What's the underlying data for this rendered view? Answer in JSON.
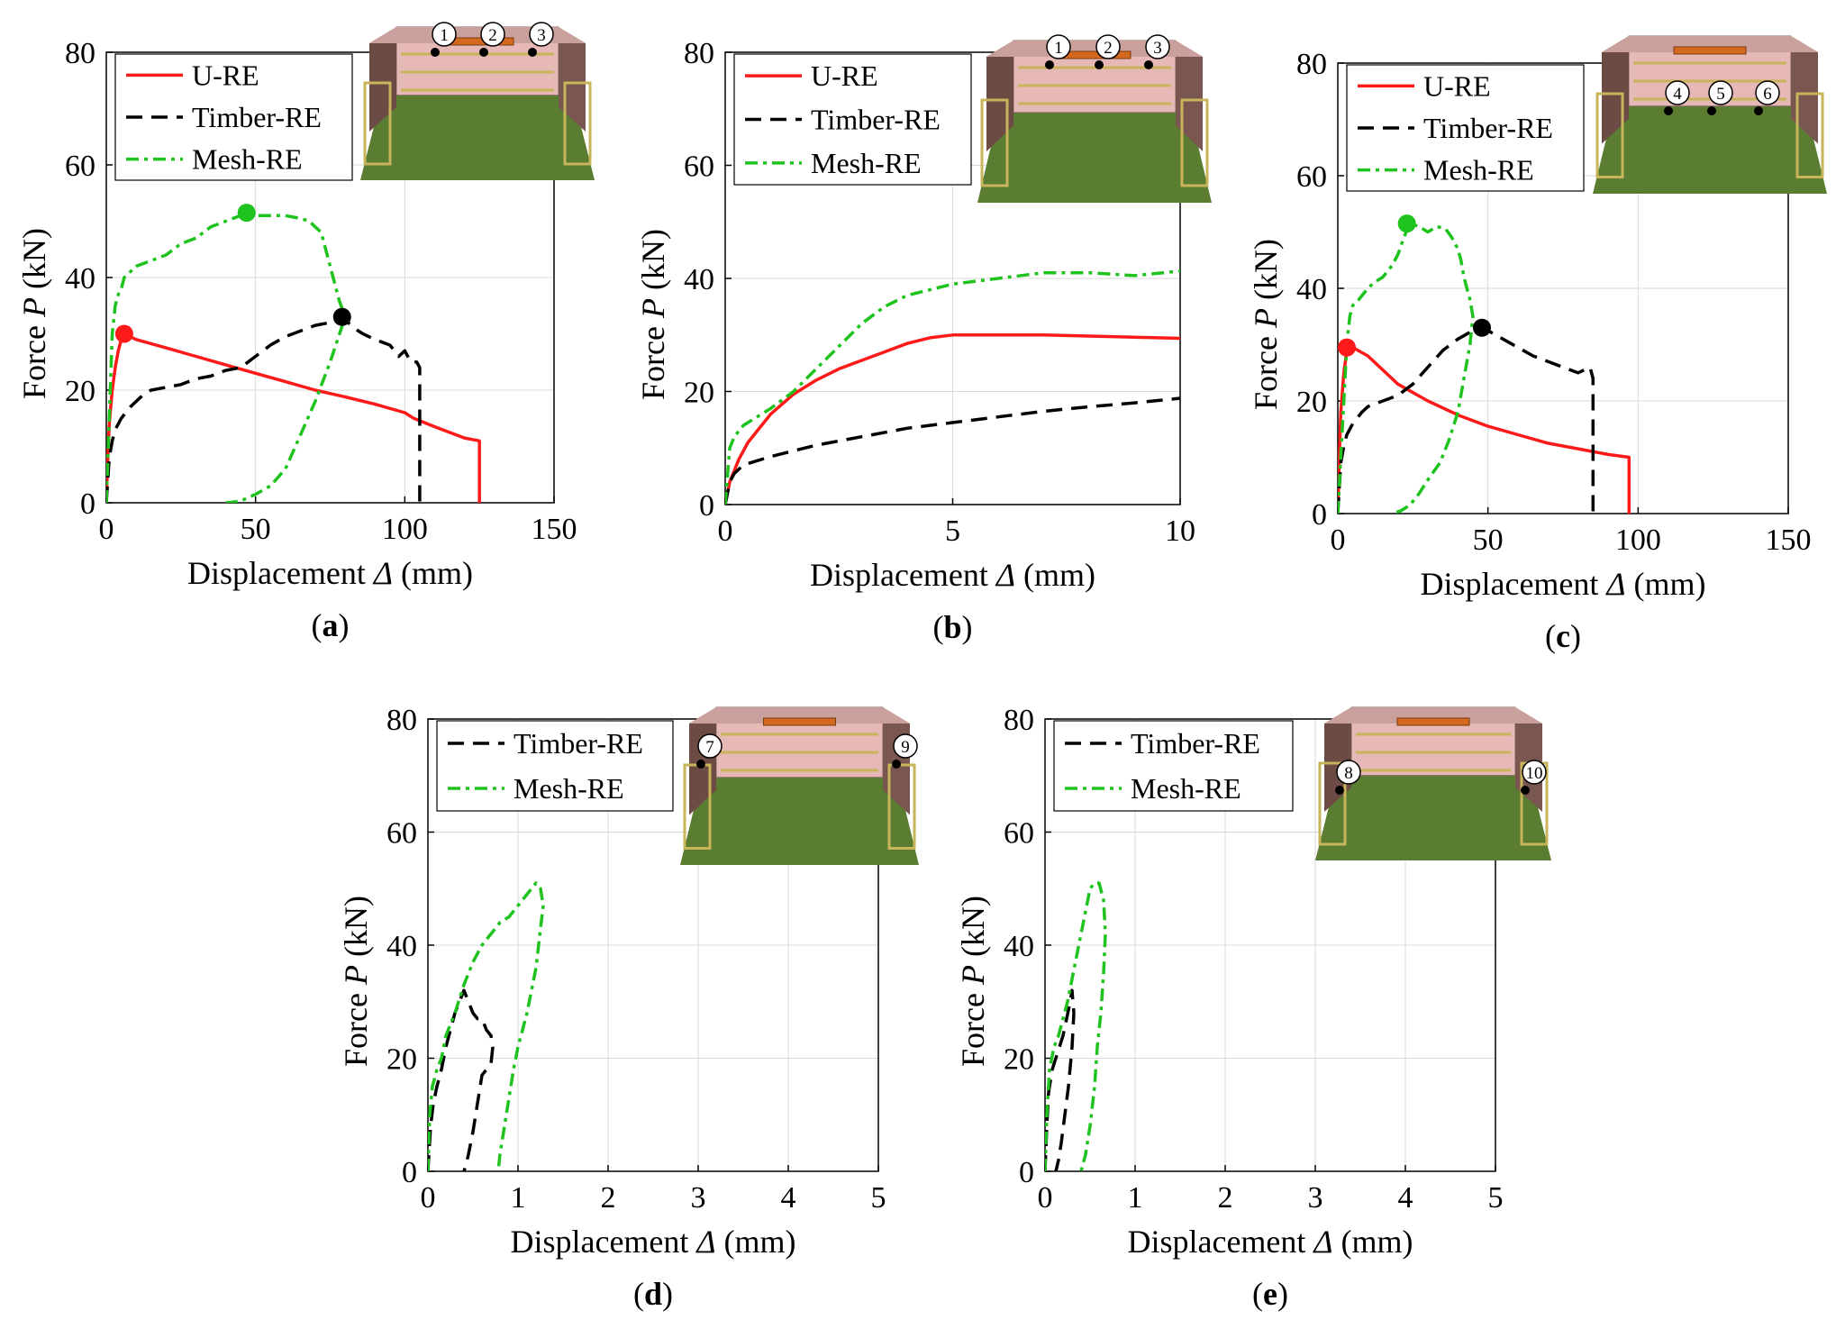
{
  "figure": {
    "colors": {
      "u_re": "#ff1a1a",
      "timber_re": "#000000",
      "mesh_re": "#1ec31e",
      "grid": "#d9d9d9",
      "wall": "#b78f8f",
      "ground": "#5a7d32"
    }
  },
  "chart_data": [
    {
      "id": "a",
      "type": "line",
      "caption_letter": "a",
      "xlabel_main": "Displacement ",
      "xlabel_sym": "Δ",
      "xlabel_unit": " (mm)",
      "ylabel_main": "Force ",
      "ylabel_sym": "P",
      "ylabel_unit": " (kN)",
      "xlim": [
        0,
        150
      ],
      "ylim": [
        0,
        80
      ],
      "xticks": [
        0,
        50,
        100,
        150
      ],
      "yticks": [
        0,
        20,
        40,
        60,
        80
      ],
      "legend_position": "top-left",
      "inset_labels": [
        "1",
        "2",
        "3"
      ],
      "series": [
        {
          "name": "U-RE",
          "style": "solid",
          "color": "#ff1a1a",
          "x": [
            0,
            0.5,
            1,
            2,
            3,
            4,
            5,
            6,
            10,
            20,
            30,
            40,
            50,
            60,
            70,
            80,
            90,
            100,
            103,
            110,
            115,
            120,
            125,
            125
          ],
          "y": [
            0,
            8,
            14,
            20,
            24,
            27,
            29,
            30,
            29,
            27.5,
            26,
            24.5,
            23,
            21.5,
            20,
            18.8,
            17.5,
            16,
            15,
            13.5,
            12.5,
            11.5,
            11,
            0
          ]
        },
        {
          "name": "Timber-RE",
          "style": "dash",
          "color": "#000000",
          "x": [
            0,
            1,
            2,
            3,
            5,
            8,
            10,
            12,
            15,
            20,
            25,
            30,
            35,
            40,
            45,
            50,
            55,
            60,
            65,
            70,
            75,
            78,
            80,
            83,
            86,
            90,
            95,
            98,
            100,
            102,
            104,
            105,
            105
          ],
          "y": [
            0,
            8,
            11,
            13,
            15,
            17,
            18,
            19,
            20,
            20.5,
            21,
            22,
            22.5,
            23.5,
            24,
            26,
            28,
            29.5,
            30.5,
            31.5,
            32,
            32.5,
            32.5,
            31,
            30,
            29,
            28,
            26,
            27,
            25,
            25,
            24,
            0
          ]
        },
        {
          "name": "Mesh-RE",
          "style": "dashdot",
          "color": "#1ec31e",
          "x": [
            0,
            1,
            2,
            3,
            4,
            5,
            6,
            8,
            10,
            15,
            20,
            25,
            30,
            35,
            40,
            45,
            50,
            55,
            60,
            65,
            68,
            70,
            72,
            73,
            74,
            75,
            76,
            77,
            78,
            80,
            75,
            70,
            65,
            60,
            55,
            50,
            47,
            45,
            42,
            40
          ],
          "y": [
            0,
            15,
            30,
            35,
            37,
            38,
            40,
            41,
            42,
            43,
            44,
            46,
            47,
            49,
            50,
            51,
            51,
            51,
            51,
            50.5,
            50,
            49,
            48,
            46,
            44,
            42,
            40,
            38,
            36,
            33,
            25,
            18,
            12,
            6,
            3,
            1.5,
            0.8,
            0.3,
            0.1,
            0
          ]
        }
      ],
      "peaks": [
        {
          "series": "U-RE",
          "x": 6,
          "y": 30
        },
        {
          "series": "Mesh-RE",
          "x": 47,
          "y": 51.5
        },
        {
          "series": "Timber-RE",
          "x": 79,
          "y": 33
        }
      ]
    },
    {
      "id": "b",
      "type": "line",
      "caption_letter": "b",
      "xlabel_main": "Displacement ",
      "xlabel_sym": "Δ",
      "xlabel_unit": " (mm)",
      "ylabel_main": "Force ",
      "ylabel_sym": "P",
      "ylabel_unit": " (kN)",
      "xlim": [
        0,
        10
      ],
      "ylim": [
        0,
        80
      ],
      "xticks": [
        0,
        5,
        10
      ],
      "yticks": [
        0,
        20,
        40,
        60,
        80
      ],
      "legend_position": "top-left",
      "inset_labels": [
        "1",
        "2",
        "3"
      ],
      "series": [
        {
          "name": "U-RE",
          "style": "solid",
          "color": "#ff1a1a",
          "x": [
            0,
            0.1,
            0.2,
            0.3,
            0.5,
            0.8,
            1,
            1.5,
            2,
            2.5,
            3,
            3.5,
            4,
            4.5,
            5,
            6,
            7,
            8,
            9,
            10
          ],
          "y": [
            0,
            4,
            6,
            8,
            11,
            14,
            16,
            19.5,
            22,
            24,
            25.5,
            27,
            28.5,
            29.5,
            30,
            30,
            30,
            29.8,
            29.6,
            29.4
          ]
        },
        {
          "name": "Timber-RE",
          "style": "dash",
          "color": "#000000",
          "x": [
            0,
            0.1,
            0.2,
            0.4,
            0.6,
            1,
            1.5,
            2,
            3,
            4,
            5,
            6,
            7,
            8,
            9,
            10
          ],
          "y": [
            0,
            4,
            5.5,
            7,
            7.5,
            8.5,
            9.5,
            10.5,
            12,
            13.5,
            14.5,
            15.5,
            16.5,
            17.3,
            18,
            18.8
          ]
        },
        {
          "name": "Mesh-RE",
          "style": "dashdot",
          "color": "#1ec31e",
          "x": [
            0,
            0.1,
            0.2,
            0.4,
            0.6,
            1,
            1.5,
            2,
            2.5,
            3,
            3.5,
            4,
            4.5,
            5,
            6,
            7,
            8,
            9,
            10
          ],
          "y": [
            0,
            10,
            12,
            14,
            15,
            17,
            20,
            24,
            28,
            32,
            35,
            37,
            38,
            39,
            40,
            41,
            41,
            40.5,
            41.3
          ]
        }
      ],
      "peaks": []
    },
    {
      "id": "c",
      "type": "line",
      "caption_letter": "c",
      "xlabel_main": "Displacement ",
      "xlabel_sym": "Δ",
      "xlabel_unit": " (mm)",
      "ylabel_main": "Force ",
      "ylabel_sym": "P",
      "ylabel_unit": " (kN)",
      "xlim": [
        0,
        150
      ],
      "ylim": [
        0,
        80
      ],
      "xticks": [
        0,
        50,
        100,
        150
      ],
      "yticks": [
        0,
        20,
        40,
        60,
        80
      ],
      "legend_position": "top-left",
      "inset_labels": [
        "4",
        "5",
        "6"
      ],
      "series": [
        {
          "name": "U-RE",
          "style": "solid",
          "color": "#ff1a1a",
          "x": [
            0,
            0.5,
            1,
            2,
            3,
            5,
            10,
            15,
            20,
            30,
            40,
            50,
            60,
            70,
            80,
            90,
            97,
            97
          ],
          "y": [
            0,
            10,
            18,
            25,
            29,
            29.5,
            28,
            25.5,
            23,
            20,
            17.5,
            15.5,
            14,
            12.5,
            11.5,
            10.5,
            10,
            0
          ]
        },
        {
          "name": "Timber-RE",
          "style": "dash",
          "color": "#000000",
          "x": [
            0,
            1,
            2,
            3,
            5,
            8,
            10,
            15,
            20,
            25,
            30,
            35,
            40,
            45,
            48,
            50,
            55,
            60,
            65,
            70,
            75,
            80,
            84,
            85,
            85
          ],
          "y": [
            0,
            9,
            12,
            14,
            16,
            18,
            19,
            20,
            21,
            23,
            26,
            29,
            31,
            32.5,
            33,
            32.5,
            31,
            29.5,
            28,
            27,
            26,
            25,
            26,
            24,
            0
          ]
        },
        {
          "name": "Mesh-RE",
          "style": "dashdot",
          "color": "#1ec31e",
          "x": [
            0,
            1,
            2,
            3,
            4,
            5,
            7,
            10,
            12,
            15,
            18,
            20,
            22,
            24,
            27,
            30,
            33,
            36,
            38,
            40,
            41,
            42,
            43,
            44,
            45,
            44,
            42,
            40,
            37,
            34,
            30,
            27,
            24,
            21,
            18
          ],
          "y": [
            0,
            10,
            20,
            30,
            35,
            37,
            38,
            40,
            41,
            42,
            44,
            46,
            49,
            51.5,
            51,
            50,
            51,
            50.5,
            49,
            47,
            45,
            42,
            40,
            38,
            35,
            30,
            24,
            18,
            13,
            9,
            6,
            3.5,
            1.5,
            0.5,
            0
          ]
        }
      ],
      "peaks": [
        {
          "series": "U-RE",
          "x": 3,
          "y": 29.5
        },
        {
          "series": "Mesh-RE",
          "x": 23,
          "y": 51.5
        },
        {
          "series": "Timber-RE",
          "x": 48,
          "y": 33
        }
      ]
    },
    {
      "id": "d",
      "type": "line",
      "caption_letter": "d",
      "xlabel_main": "Displacement ",
      "xlabel_sym": "Δ",
      "xlabel_unit": " (mm)",
      "ylabel_main": "Force ",
      "ylabel_sym": "P",
      "ylabel_unit": " (kN)",
      "xlim": [
        0,
        5
      ],
      "ylim": [
        0,
        80
      ],
      "xticks": [
        0,
        1,
        2,
        3,
        4,
        5
      ],
      "yticks": [
        0,
        20,
        40,
        60,
        80
      ],
      "legend_position": "top-left",
      "inset_labels": [
        "7",
        "9"
      ],
      "series": [
        {
          "name": "Timber-RE",
          "style": "dash",
          "color": "#000000",
          "x": [
            0,
            0.03,
            0.06,
            0.1,
            0.15,
            0.2,
            0.25,
            0.3,
            0.35,
            0.4,
            0.45,
            0.5,
            0.55,
            0.6,
            0.65,
            0.7,
            0.72,
            0.7,
            0.6,
            0.55,
            0.5,
            0.45,
            0.42,
            0.4
          ],
          "y": [
            0,
            8,
            12,
            15,
            18,
            22,
            25,
            28,
            30,
            32,
            30,
            28,
            27,
            27,
            25,
            24,
            22,
            19,
            17,
            12,
            7,
            3,
            1,
            0
          ]
        },
        {
          "name": "Mesh-RE",
          "style": "dashdot",
          "color": "#1ec31e",
          "x": [
            0,
            0.02,
            0.05,
            0.1,
            0.15,
            0.2,
            0.3,
            0.4,
            0.5,
            0.6,
            0.7,
            0.8,
            0.9,
            1.0,
            1.1,
            1.2,
            1.25,
            1.28,
            1.25,
            1.2,
            1.1,
            1.0,
            0.95,
            0.9,
            0.85,
            0.8,
            0.78
          ],
          "y": [
            0,
            10,
            15,
            18,
            20,
            24,
            28,
            33,
            37,
            40,
            42,
            44,
            45,
            47,
            49,
            51,
            50,
            47,
            43,
            36,
            28,
            22,
            18,
            13,
            8,
            3,
            0
          ]
        }
      ],
      "peaks": []
    },
    {
      "id": "e",
      "type": "line",
      "caption_letter": "e",
      "xlabel_main": "Displacement ",
      "xlabel_sym": "Δ",
      "xlabel_unit": " (mm)",
      "ylabel_main": "Force ",
      "ylabel_sym": "P",
      "ylabel_unit": " (kN)",
      "xlim": [
        0,
        5
      ],
      "ylim": [
        0,
        80
      ],
      "xticks": [
        0,
        1,
        2,
        3,
        4,
        5
      ],
      "yticks": [
        0,
        20,
        40,
        60,
        80
      ],
      "legend_position": "top-left",
      "inset_labels": [
        "8",
        "10"
      ],
      "series": [
        {
          "name": "Timber-RE",
          "style": "dash",
          "color": "#000000",
          "x": [
            0,
            0.02,
            0.04,
            0.08,
            0.12,
            0.16,
            0.2,
            0.24,
            0.28,
            0.3,
            0.32,
            0.3,
            0.26,
            0.22,
            0.18,
            0.15,
            0.12
          ],
          "y": [
            0,
            8,
            14,
            18,
            20,
            22,
            24,
            27,
            30,
            32,
            28,
            22,
            15,
            10,
            5,
            2,
            0
          ]
        },
        {
          "name": "Mesh-RE",
          "style": "dashdot",
          "color": "#1ec31e",
          "x": [
            0,
            0.02,
            0.05,
            0.1,
            0.15,
            0.2,
            0.25,
            0.3,
            0.35,
            0.4,
            0.45,
            0.5,
            0.55,
            0.6,
            0.65,
            0.67,
            0.65,
            0.62,
            0.58,
            0.55,
            0.5,
            0.45,
            0.4
          ],
          "y": [
            0,
            10,
            18,
            22,
            24,
            27,
            30,
            34,
            38,
            42,
            46,
            50,
            51,
            51,
            48,
            42,
            35,
            28,
            22,
            15,
            8,
            3,
            0
          ]
        }
      ],
      "peaks": []
    }
  ]
}
